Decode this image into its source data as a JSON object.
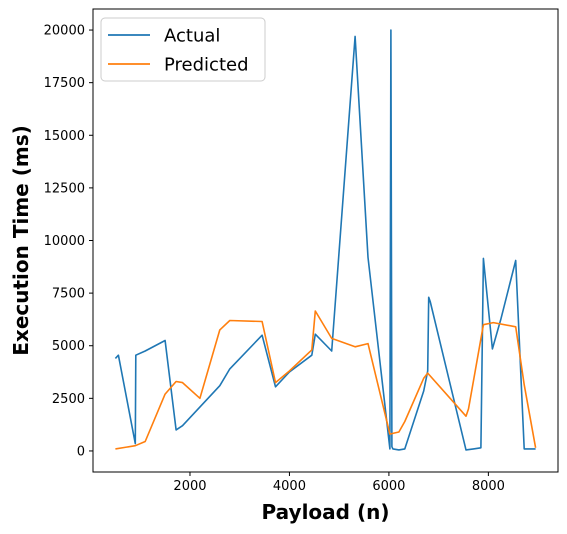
{
  "chart_data": {
    "type": "line",
    "title": "",
    "xlabel": "Payload (n)",
    "ylabel": "Execution Time (ms)",
    "xlim": [
      50,
      9400
    ],
    "ylim": [
      -1000,
      21000
    ],
    "xticks": [
      2000,
      4000,
      6000,
      8000
    ],
    "yticks": [
      0,
      2500,
      5000,
      7500,
      10000,
      12500,
      15000,
      17500,
      20000
    ],
    "grid": false,
    "legend": "top-left",
    "series": [
      {
        "name": "Actual",
        "color": "#1f77b4",
        "x": [
          500,
          560,
          900,
          910,
          1100,
          1500,
          1720,
          1850,
          2600,
          2800,
          3450,
          3720,
          4000,
          4450,
          4520,
          4850,
          5320,
          5580,
          6020,
          6040,
          6060,
          6080,
          6200,
          6320,
          6700,
          6780,
          6800,
          6830,
          7550,
          7700,
          7850,
          7900,
          8080,
          8250,
          8550,
          8720,
          8800,
          8950
        ],
        "y": [
          4400,
          4550,
          350,
          4550,
          4750,
          5250,
          1000,
          1200,
          3100,
          3900,
          5500,
          3050,
          3750,
          4550,
          5550,
          4750,
          19700,
          9200,
          100,
          20000,
          200,
          100,
          50,
          100,
          2850,
          3800,
          7300,
          7100,
          50,
          100,
          150,
          9150,
          4850,
          6250,
          9050,
          100,
          100,
          100
        ]
      },
      {
        "name": "Predicted",
        "color": "#ff7f0e",
        "x": [
          500,
          900,
          1100,
          1500,
          1720,
          1850,
          2200,
          2600,
          2800,
          3450,
          3720,
          4000,
          4450,
          4520,
          4850,
          5320,
          5580,
          6020,
          6100,
          6200,
          6320,
          6700,
          6780,
          7550,
          7600,
          7900,
          8100,
          8550,
          8720,
          8950
        ],
        "y": [
          100,
          250,
          450,
          2700,
          3300,
          3250,
          2500,
          5750,
          6200,
          6150,
          3250,
          3800,
          4800,
          6650,
          5350,
          4950,
          5100,
          800,
          850,
          900,
          1400,
          3450,
          3700,
          1650,
          2000,
          6000,
          6100,
          5900,
          3150,
          150
        ]
      }
    ]
  }
}
